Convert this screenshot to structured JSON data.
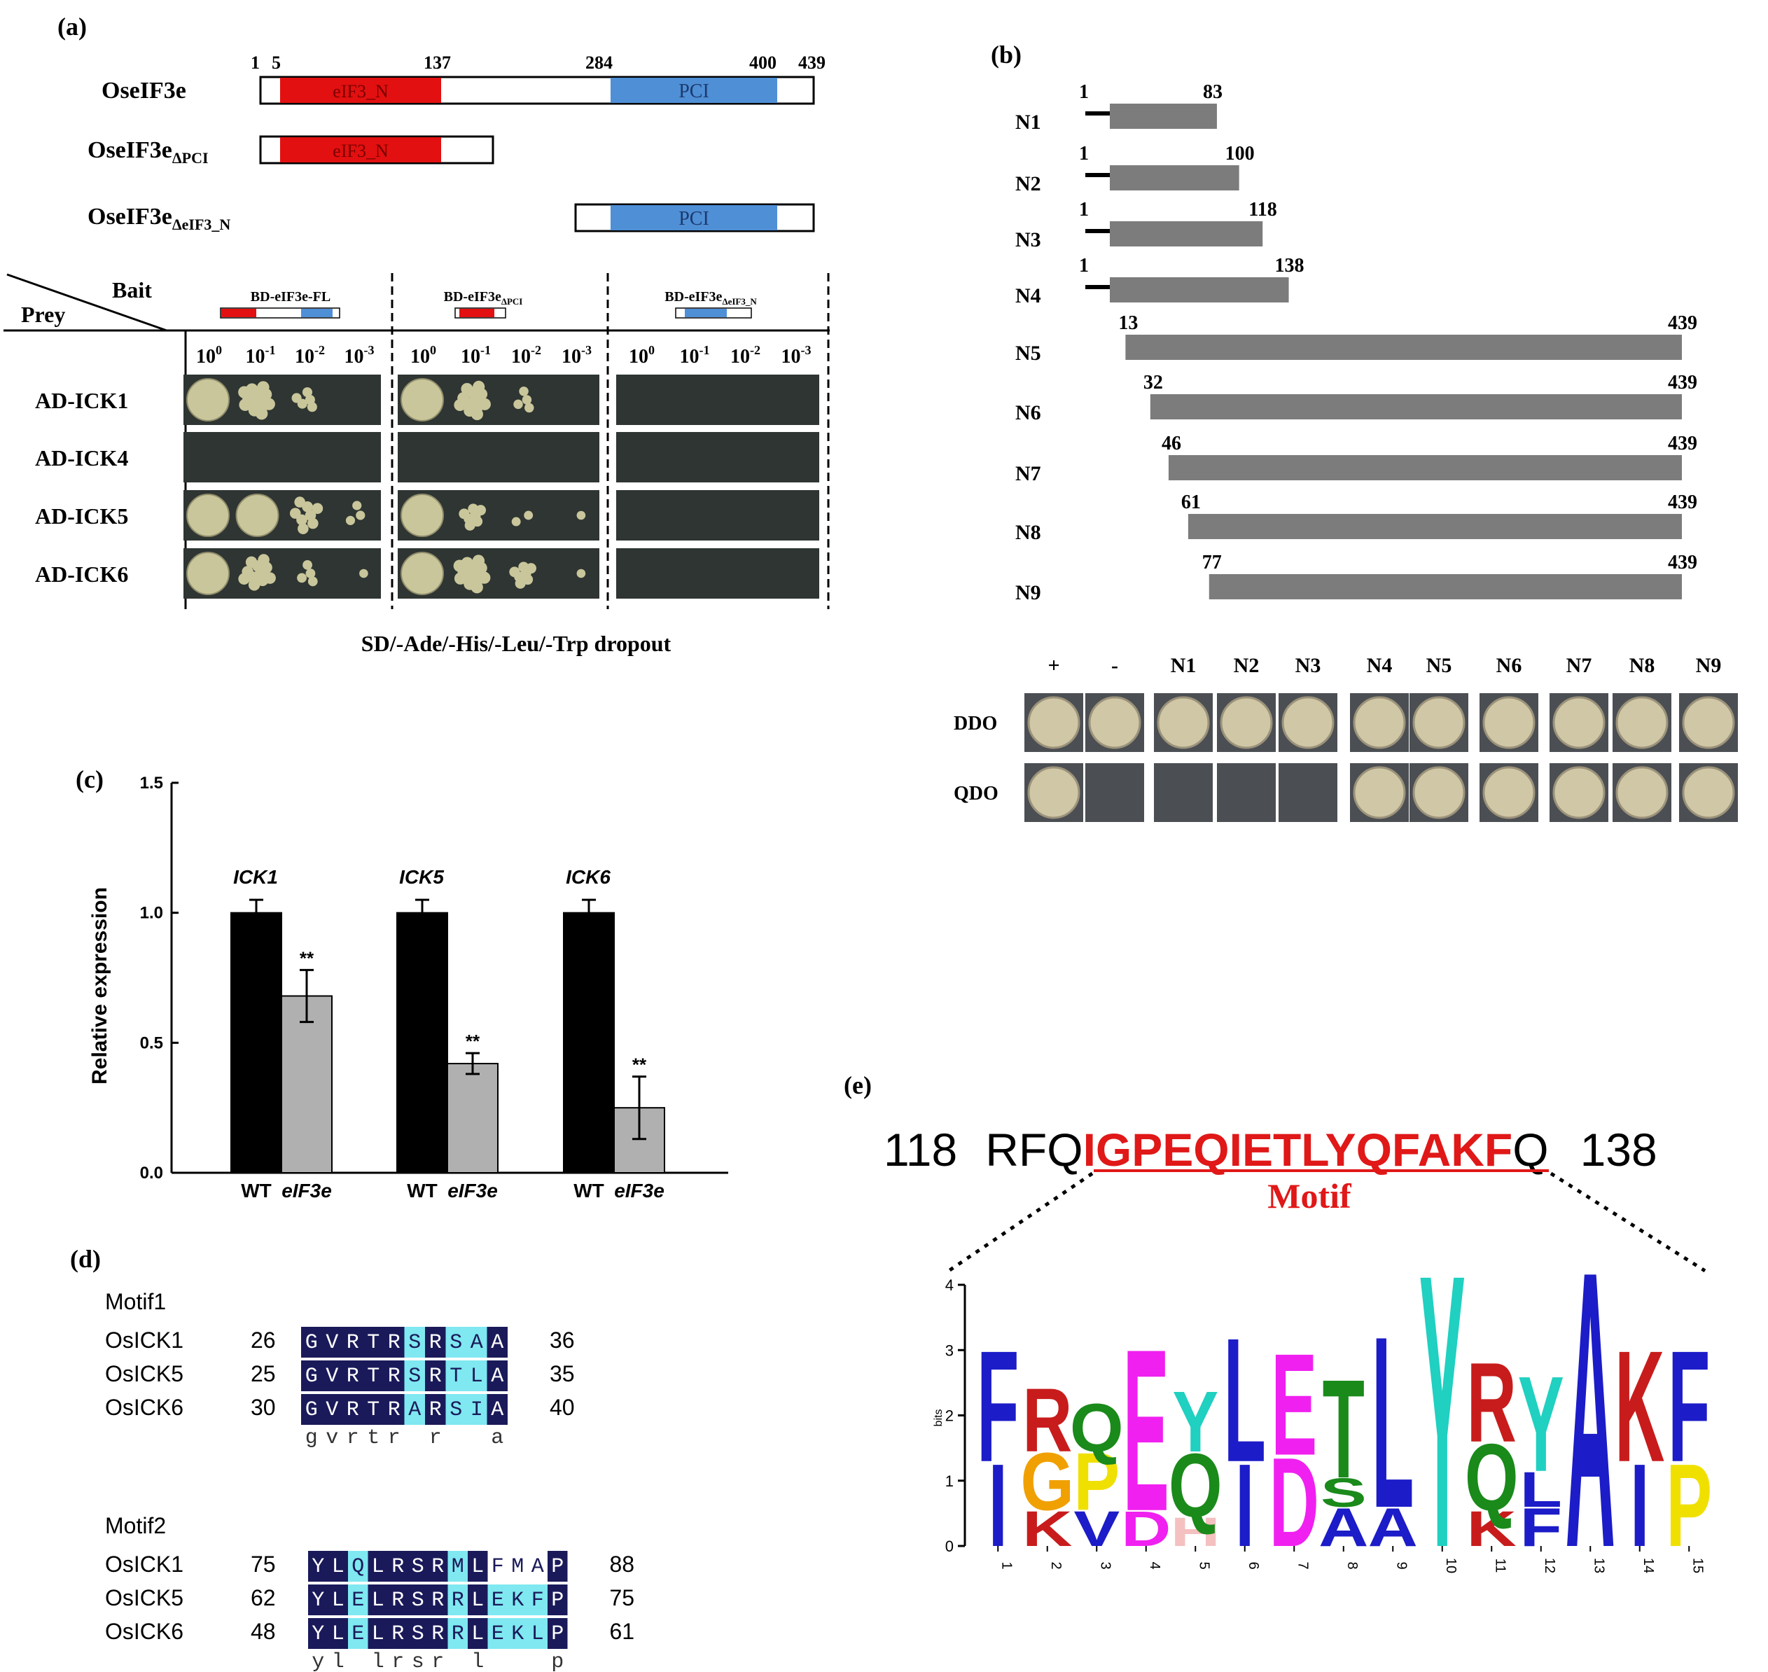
{
  "colors": {
    "domain_eIF3_N": "#e21010",
    "domain_PCI": "#4f8fd6",
    "fragment_bar": "#7c7c7c",
    "bar_WT": "#000000",
    "bar_eIF3e": "#b0b0b0",
    "plate_bg": "#2e3532",
    "colony": "#c9c69b",
    "align_dark": "#1a1a5a",
    "align_light": "#7fe8f0",
    "motif_red": "#e01818"
  },
  "panel_a": {
    "label": "(a)",
    "constructs": [
      {
        "name": "OseIF3e",
        "sub": "",
        "tick_labels": [
          "1",
          "5",
          "137",
          "284",
          "400",
          "439"
        ],
        "domains": [
          {
            "name": "eIF3_N",
            "color_key": "domain_eIF3_N"
          },
          {
            "name": "PCI",
            "color_key": "domain_PCI"
          }
        ]
      },
      {
        "name": "OseIF3e",
        "sub": "ΔPCI",
        "tick_labels": [],
        "domains": [
          {
            "name": "eIF3_N",
            "color_key": "domain_eIF3_N"
          }
        ]
      },
      {
        "name": "OseIF3e",
        "sub": "ΔeIF3_N",
        "tick_labels": [],
        "domains": [
          {
            "name": "PCI",
            "color_key": "domain_PCI"
          }
        ]
      }
    ],
    "table": {
      "bait_label": "Bait",
      "prey_label": "Prey",
      "bait_columns": [
        {
          "name": "BD-eIF3e-FL",
          "sub": ""
        },
        {
          "name": "BD-eIF3e",
          "sub": "ΔPCI"
        },
        {
          "name": "BD-eIF3e",
          "sub": "ΔeIF3_N"
        }
      ],
      "dilution_base": "10",
      "dilution_exponents": [
        "0",
        "-1",
        "-2",
        "-3"
      ],
      "rows": [
        {
          "label": "AD-ICK1",
          "growth": [
            [
              1,
              0.9,
              0.35,
              0
            ],
            [
              1,
              0.85,
              0.25,
              0
            ],
            [
              0,
              0,
              0,
              0
            ]
          ]
        },
        {
          "label": "AD-ICK4",
          "growth": [
            [
              0,
              0,
              0,
              0
            ],
            [
              0,
              0,
              0,
              0
            ],
            [
              0,
              0,
              0,
              0
            ]
          ]
        },
        {
          "label": "AD-ICK5",
          "growth": [
            [
              1,
              0.95,
              0.6,
              0.2
            ],
            [
              1,
              0.5,
              0.15,
              0.1
            ],
            [
              0,
              0,
              0,
              0
            ]
          ]
        },
        {
          "label": "AD-ICK6",
          "growth": [
            [
              1,
              0.75,
              0.3,
              0.1
            ],
            [
              1,
              0.9,
              0.5,
              0.1
            ],
            [
              0,
              0,
              0,
              0
            ]
          ]
        }
      ],
      "caption": "SD/-Ade/-His/-Leu/-Trp dropout"
    }
  },
  "panel_b": {
    "label": "(b)",
    "fragments": [
      {
        "name": "N1",
        "start": 1,
        "end": 83,
        "start_label": "1",
        "end_label": "83"
      },
      {
        "name": "N2",
        "start": 1,
        "end": 100,
        "start_label": "1",
        "end_label": "100"
      },
      {
        "name": "N3",
        "start": 1,
        "end": 118,
        "start_label": "1",
        "end_label": "118"
      },
      {
        "name": "N4",
        "start": 1,
        "end": 138,
        "start_label": "1",
        "end_label": "138"
      },
      {
        "name": "N5",
        "start": 13,
        "end": 439,
        "start_label": "13",
        "end_label": "439"
      },
      {
        "name": "N6",
        "start": 32,
        "end": 439,
        "start_label": "32",
        "end_label": "439"
      },
      {
        "name": "N7",
        "start": 46,
        "end": 439,
        "start_label": "46",
        "end_label": "439"
      },
      {
        "name": "N8",
        "start": 61,
        "end": 439,
        "start_label": "61",
        "end_label": "439"
      },
      {
        "name": "N9",
        "start": 77,
        "end": 439,
        "start_label": "77",
        "end_label": "439"
      }
    ],
    "spot_columns": [
      "+",
      "-",
      "N1",
      "N2",
      "N3",
      "N4",
      "N5",
      "N6",
      "N7",
      "N8",
      "N9"
    ],
    "spot_rows": [
      {
        "label": "DDO",
        "growth": [
          1,
          1,
          1,
          1,
          1,
          1,
          1,
          1,
          1,
          1,
          1
        ]
      },
      {
        "label": "QDO",
        "growth": [
          1,
          0,
          0,
          0,
          0,
          1,
          1,
          1,
          1,
          1,
          1
        ]
      }
    ]
  },
  "panel_c": {
    "label": "(c)",
    "chart_data": {
      "type": "bar",
      "title": "",
      "xlabel": "",
      "ylabel": "Relative expression",
      "ylim": [
        0,
        1.5
      ],
      "yticks": [
        "0.0",
        "0.5",
        "1.0",
        "1.5"
      ],
      "groups": [
        "ICK1",
        "ICK5",
        "ICK6"
      ],
      "bar_labels": [
        "WT",
        "eIF3e"
      ],
      "series": [
        {
          "values": [
            1.0,
            1.0,
            1.0
          ],
          "errors": [
            0.05,
            0.05,
            0.05
          ],
          "color_key": "bar_WT"
        },
        {
          "values": [
            0.68,
            0.42,
            0.25
          ],
          "errors": [
            0.1,
            0.04,
            0.12
          ],
          "color_key": "bar_eIF3e"
        }
      ],
      "significance": [
        "**",
        "**",
        "**"
      ],
      "grid": false,
      "legend": "none"
    }
  },
  "panel_d": {
    "label": "(d)",
    "motifs": [
      {
        "title": "Motif1",
        "rows": [
          {
            "name": "OsICK1",
            "start": "26",
            "end": "36",
            "seq": "GVRTRSRSAA",
            "shade": "DDDDDLDLLD"
          },
          {
            "name": "OsICK5",
            "start": "25",
            "end": "35",
            "seq": "GVRTRSRTLA",
            "shade": "DDDDDLDLLD"
          },
          {
            "name": "OsICK6",
            "start": "30",
            "end": "40",
            "seq": "GVRTRARSIA",
            "shade": "DDDDDLDLLD"
          }
        ],
        "consensus": "gvrtr r  a"
      },
      {
        "title": "Motif2",
        "rows": [
          {
            "name": "OsICK1",
            "start": "75",
            "end": "88",
            "seq": "YLQLRSRMLFMAP",
            "shade": "DDLDDDDLDWWWD"
          },
          {
            "name": "OsICK5",
            "start": "62",
            "end": "75",
            "seq": "YLELRSRRLEKFP",
            "shade": "DDLDDDDLDLLLD"
          },
          {
            "name": "OsICK6",
            "start": "48",
            "end": "61",
            "seq": "YLELRSRRLEKLP",
            "shade": "DDLDDDDLDLLLD"
          }
        ],
        "consensus": "yl lrsr l   p"
      }
    ]
  },
  "panel_e": {
    "label": "(e)",
    "start_pos": "118",
    "end_pos": "138",
    "prefix": "RFQ",
    "motif": "IGPEQIETLYQFAKF",
    "suffix": "Q",
    "motif_label": "Motif",
    "logo": {
      "ylabel": "bits",
      "ymax": 4,
      "yticks": [
        "0",
        "1",
        "2",
        "3",
        "4"
      ],
      "positions": [
        {
          "pos": "1",
          "letters": [
            {
              "c": "I",
              "h": 1.3,
              "col": "#1c1cc8"
            },
            {
              "c": "F",
              "h": 1.75,
              "col": "#1c1cc8"
            }
          ]
        },
        {
          "pos": "2",
          "letters": [
            {
              "c": "K",
              "h": 0.55,
              "col": "#c81c1c"
            },
            {
              "c": "G",
              "h": 0.9,
              "col": "#f0a000"
            },
            {
              "c": "R",
              "h": 1.0,
              "col": "#c81c1c"
            }
          ]
        },
        {
          "pos": "3",
          "letters": [
            {
              "c": "V",
              "h": 0.55,
              "col": "#1c1cc8"
            },
            {
              "c": "P",
              "h": 0.9,
              "col": "#f0e000"
            },
            {
              "c": "Q",
              "h": 0.75,
              "col": "#1a8a1a"
            }
          ]
        },
        {
          "pos": "4",
          "letters": [
            {
              "c": "D",
              "h": 0.55,
              "col": "#f020f0"
            },
            {
              "c": "E",
              "h": 2.55,
              "col": "#f020f0"
            }
          ]
        },
        {
          "pos": "5",
          "letters": [
            {
              "c": "H",
              "h": 0.45,
              "col": "#f4c0c0"
            },
            {
              "c": "Q",
              "h": 1.0,
              "col": "#1a8a1a"
            },
            {
              "c": "Y",
              "h": 0.95,
              "col": "#20d0c0"
            }
          ]
        },
        {
          "pos": "6",
          "letters": [
            {
              "c": "I",
              "h": 1.3,
              "col": "#1c1cc8"
            },
            {
              "c": "L",
              "h": 1.95,
              "col": "#1c1cc8"
            }
          ]
        },
        {
          "pos": "7",
          "letters": [
            {
              "c": "D",
              "h": 1.4,
              "col": "#f020f0"
            },
            {
              "c": "E",
              "h": 1.6,
              "col": "#f020f0"
            }
          ]
        },
        {
          "pos": "8",
          "letters": [
            {
              "c": "A",
              "h": 0.6,
              "col": "#1c1cc8"
            },
            {
              "c": "S",
              "h": 0.45,
              "col": "#1a8a1a"
            },
            {
              "c": "T",
              "h": 1.55,
              "col": "#1a8a1a"
            }
          ]
        },
        {
          "pos": "9",
          "letters": [
            {
              "c": "A",
              "h": 0.6,
              "col": "#1c1cc8"
            },
            {
              "c": "L",
              "h": 2.7,
              "col": "#1c1cc8"
            }
          ]
        },
        {
          "pos": "10",
          "letters": [
            {
              "c": "Y",
              "h": 4.3,
              "col": "#20d0c0"
            }
          ]
        },
        {
          "pos": "11",
          "letters": [
            {
              "c": "K",
              "h": 0.55,
              "col": "#c81c1c"
            },
            {
              "c": "Q",
              "h": 1.05,
              "col": "#1a8a1a"
            },
            {
              "c": "R",
              "h": 1.25,
              "col": "#c81c1c"
            }
          ]
        },
        {
          "pos": "12",
          "letters": [
            {
              "c": "F",
              "h": 0.6,
              "col": "#1c1cc8"
            },
            {
              "c": "L",
              "h": 0.55,
              "col": "#1c1cc8"
            },
            {
              "c": "Y",
              "h": 1.5,
              "col": "#20d0c0"
            }
          ]
        },
        {
          "pos": "13",
          "letters": [
            {
              "c": "A",
              "h": 4.35,
              "col": "#1c1cc8"
            }
          ]
        },
        {
          "pos": "14",
          "letters": [
            {
              "c": "I",
              "h": 1.3,
              "col": "#1c1cc8"
            },
            {
              "c": "K",
              "h": 1.75,
              "col": "#c81c1c"
            }
          ]
        },
        {
          "pos": "15",
          "letters": [
            {
              "c": "P",
              "h": 1.3,
              "col": "#f0e000"
            },
            {
              "c": "F",
              "h": 1.75,
              "col": "#1c1cc8"
            }
          ]
        }
      ]
    }
  }
}
